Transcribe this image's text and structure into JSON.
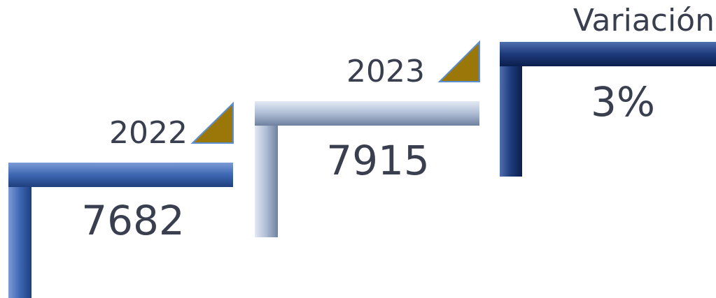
{
  "steps": [
    {
      "label": "2022",
      "value": "7682"
    },
    {
      "label": "2023",
      "value": "7915"
    },
    {
      "label": "Variación",
      "value": "3%"
    }
  ]
}
